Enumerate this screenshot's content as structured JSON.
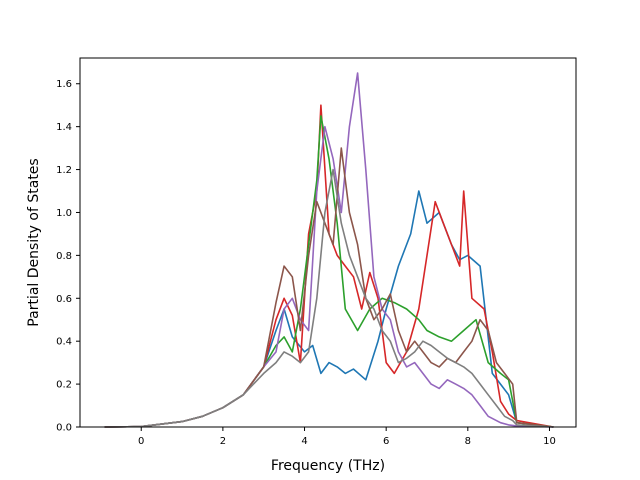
{
  "chart_data": {
    "type": "line",
    "title": "",
    "xlabel": "Frequency (THz)",
    "ylabel": "Partial Density of States",
    "xlim": [
      -1.5,
      10.65
    ],
    "ylim": [
      0.0,
      1.72
    ],
    "xticks": [
      0,
      2,
      4,
      6,
      8,
      10
    ],
    "xtick_labels": [
      "0",
      "2",
      "4",
      "6",
      "8",
      "10"
    ],
    "yticks": [
      0.0,
      0.2,
      0.4,
      0.6,
      0.8,
      1.0,
      1.2,
      1.4,
      1.6
    ],
    "ytick_labels": [
      "0.0",
      "0.2",
      "0.4",
      "0.6",
      "0.8",
      "1.0",
      "1.2",
      "1.4",
      "1.6"
    ],
    "grid": false,
    "legend": "none",
    "series": [
      {
        "color": "#1f77b4",
        "x": [
          -0.9,
          0,
          1,
          1.5,
          2,
          2.5,
          3,
          3.3,
          3.5,
          3.7,
          4,
          4.2,
          4.4,
          4.6,
          4.8,
          5,
          5.2,
          5.5,
          5.8,
          6,
          6.3,
          6.6,
          6.8,
          7,
          7.3,
          7.6,
          7.8,
          8,
          8.3,
          8.6,
          8.8,
          9,
          9.2,
          10.1
        ],
        "y": [
          0,
          0.002,
          0.025,
          0.05,
          0.09,
          0.15,
          0.28,
          0.45,
          0.55,
          0.42,
          0.35,
          0.38,
          0.25,
          0.3,
          0.28,
          0.25,
          0.27,
          0.22,
          0.4,
          0.55,
          0.75,
          0.9,
          1.1,
          0.95,
          1.0,
          0.85,
          0.78,
          0.8,
          0.75,
          0.25,
          0.2,
          0.15,
          0.02,
          0
        ]
      },
      {
        "color": "#d62728",
        "x": [
          -0.9,
          0,
          1,
          1.5,
          2,
          2.5,
          3,
          3.3,
          3.5,
          3.7,
          3.9,
          4.1,
          4.3,
          4.4,
          4.6,
          4.8,
          5,
          5.2,
          5.4,
          5.6,
          5.8,
          6,
          6.2,
          6.5,
          6.8,
          7,
          7.2,
          7.4,
          7.6,
          7.8,
          7.9,
          8.1,
          8.4,
          8.6,
          8.8,
          9,
          9.2,
          10.1
        ],
        "y": [
          0,
          0.002,
          0.025,
          0.05,
          0.09,
          0.15,
          0.28,
          0.5,
          0.6,
          0.52,
          0.3,
          0.9,
          1.1,
          1.5,
          0.9,
          0.8,
          0.75,
          0.7,
          0.55,
          0.72,
          0.6,
          0.3,
          0.25,
          0.35,
          0.55,
          0.8,
          1.05,
          0.95,
          0.85,
          0.75,
          1.1,
          0.6,
          0.55,
          0.35,
          0.12,
          0.06,
          0.03,
          0
        ]
      },
      {
        "color": "#2ca02c",
        "x": [
          -0.9,
          0,
          1,
          1.5,
          2,
          2.5,
          3,
          3.3,
          3.5,
          3.7,
          3.9,
          4.1,
          4.3,
          4.4,
          4.6,
          4.8,
          5,
          5.3,
          5.6,
          5.9,
          6.2,
          6.5,
          6.8,
          7,
          7.3,
          7.6,
          7.9,
          8.2,
          8.5,
          8.8,
          9,
          9.2,
          10.1
        ],
        "y": [
          0,
          0.002,
          0.025,
          0.05,
          0.09,
          0.15,
          0.28,
          0.38,
          0.42,
          0.35,
          0.55,
          0.85,
          1.15,
          1.45,
          1.25,
          0.95,
          0.55,
          0.45,
          0.55,
          0.6,
          0.58,
          0.55,
          0.5,
          0.45,
          0.42,
          0.4,
          0.45,
          0.5,
          0.3,
          0.25,
          0.22,
          0.02,
          0
        ]
      },
      {
        "color": "#9467bd",
        "x": [
          -0.9,
          0,
          1,
          1.5,
          2,
          2.5,
          3,
          3.3,
          3.5,
          3.7,
          3.9,
          4.1,
          4.3,
          4.5,
          4.7,
          4.9,
          5.1,
          5.3,
          5.5,
          5.7,
          5.9,
          6.1,
          6.3,
          6.5,
          6.7,
          6.9,
          7.1,
          7.3,
          7.5,
          7.7,
          7.9,
          8.1,
          8.3,
          8.5,
          8.8,
          9,
          9.2,
          10.1
        ],
        "y": [
          0,
          0.002,
          0.025,
          0.05,
          0.09,
          0.15,
          0.28,
          0.35,
          0.55,
          0.6,
          0.5,
          0.45,
          1.1,
          1.4,
          1.25,
          1.0,
          1.4,
          1.65,
          1.2,
          0.7,
          0.55,
          0.5,
          0.35,
          0.28,
          0.3,
          0.25,
          0.2,
          0.18,
          0.22,
          0.2,
          0.18,
          0.15,
          0.1,
          0.05,
          0.02,
          0.01,
          0.005,
          0
        ]
      },
      {
        "color": "#8c564b",
        "x": [
          -0.9,
          0,
          1,
          1.5,
          2,
          2.5,
          3,
          3.3,
          3.5,
          3.7,
          3.9,
          4.1,
          4.3,
          4.5,
          4.7,
          4.9,
          5.1,
          5.3,
          5.5,
          5.7,
          5.9,
          6.1,
          6.3,
          6.5,
          6.7,
          6.9,
          7.1,
          7.3,
          7.5,
          7.7,
          7.9,
          8.1,
          8.3,
          8.5,
          8.7,
          8.9,
          9.1,
          9.2,
          10.1
        ],
        "y": [
          0,
          0.002,
          0.025,
          0.05,
          0.09,
          0.15,
          0.28,
          0.58,
          0.75,
          0.7,
          0.45,
          0.8,
          1.05,
          0.95,
          0.85,
          1.3,
          1.0,
          0.85,
          0.6,
          0.5,
          0.55,
          0.62,
          0.45,
          0.35,
          0.4,
          0.35,
          0.3,
          0.28,
          0.32,
          0.3,
          0.35,
          0.4,
          0.5,
          0.45,
          0.3,
          0.25,
          0.2,
          0.02,
          0
        ]
      },
      {
        "color": "#7f7f7f",
        "x": [
          -0.9,
          0,
          1,
          1.5,
          2,
          2.5,
          3,
          3.3,
          3.5,
          3.7,
          3.9,
          4.1,
          4.3,
          4.5,
          4.7,
          4.9,
          5.1,
          5.3,
          5.5,
          5.7,
          5.9,
          6.1,
          6.3,
          6.5,
          6.7,
          6.9,
          7.1,
          7.3,
          7.5,
          7.7,
          7.9,
          8.1,
          8.3,
          8.5,
          8.7,
          8.9,
          9.1,
          9.2,
          10.1
        ],
        "y": [
          0,
          0.002,
          0.025,
          0.05,
          0.09,
          0.15,
          0.25,
          0.3,
          0.35,
          0.33,
          0.3,
          0.35,
          0.6,
          1.0,
          1.2,
          0.95,
          0.8,
          0.7,
          0.6,
          0.55,
          0.45,
          0.4,
          0.3,
          0.32,
          0.35,
          0.4,
          0.38,
          0.35,
          0.32,
          0.3,
          0.28,
          0.25,
          0.2,
          0.15,
          0.1,
          0.05,
          0.03,
          0.01,
          0
        ]
      }
    ]
  }
}
